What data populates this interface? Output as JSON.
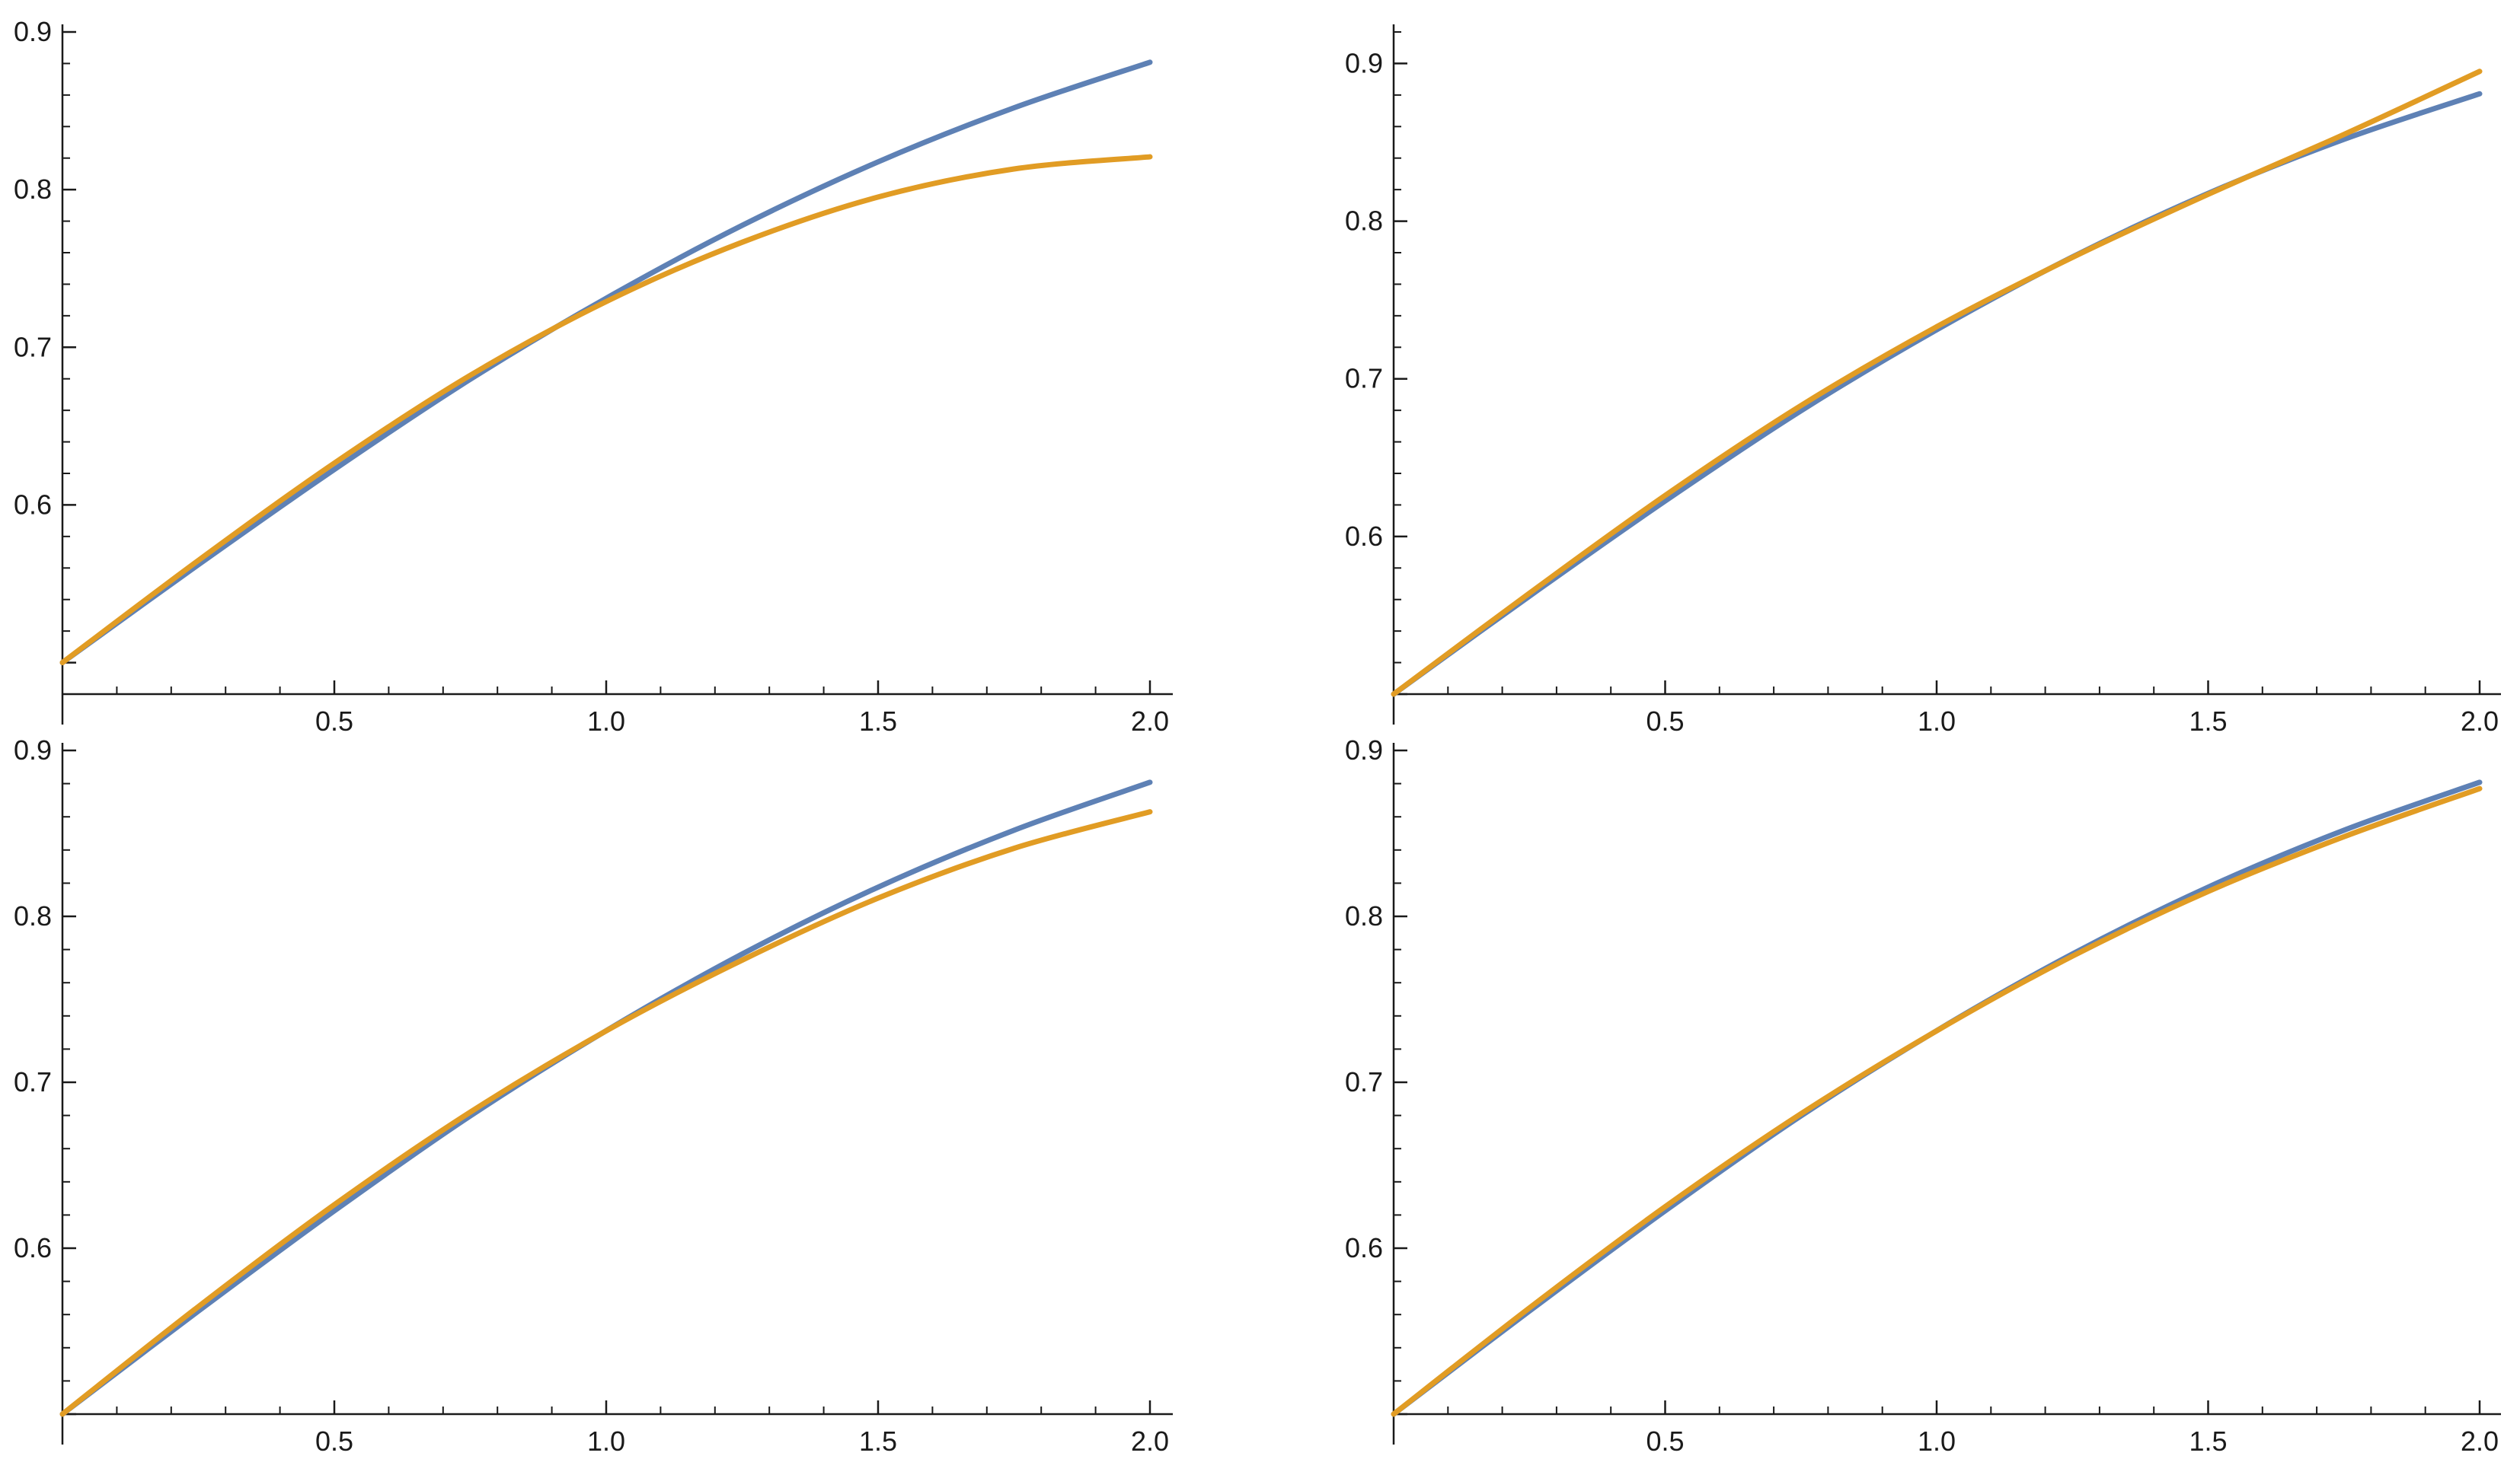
{
  "colors": {
    "series_1": "#5e81b5",
    "series_2": "#e19c24",
    "axis": "#1a1a1a"
  },
  "chart_data": [
    {
      "type": "line",
      "position": "top-left",
      "xlim": [
        0,
        2.0
      ],
      "ylim": [
        0.48,
        0.9
      ],
      "x_ticks": [
        "0.5",
        "1.0",
        "1.5",
        "2.0"
      ],
      "y_ticks": [
        "0.6",
        "0.7",
        "0.8",
        "0.9"
      ],
      "x": [
        0,
        0.25,
        0.5,
        0.75,
        1.0,
        1.25,
        1.5,
        1.75,
        2.0
      ],
      "series": [
        {
          "values": [
            0.5,
            0.5621,
            0.6225,
            0.6797,
            0.7311,
            0.7773,
            0.8176,
            0.8519,
            0.8808
          ]
        },
        {
          "values": [
            0.5,
            0.5648,
            0.6265,
            0.6822,
            0.729,
            0.7666,
            0.7953,
            0.8131,
            0.8208
          ]
        }
      ]
    },
    {
      "type": "line",
      "position": "top-right",
      "xlim": [
        0,
        2.0
      ],
      "ylim": [
        0.5,
        0.92
      ],
      "x_ticks": [
        "0.5",
        "1.0",
        "1.5",
        "2.0"
      ],
      "y_ticks": [
        "0.6",
        "0.7",
        "0.8",
        "0.9"
      ],
      "x": [
        0,
        0.25,
        0.5,
        0.75,
        1.0,
        1.25,
        1.5,
        1.75,
        2.0
      ],
      "series": [
        {
          "values": [
            0.5,
            0.5621,
            0.6225,
            0.6797,
            0.7311,
            0.7773,
            0.8176,
            0.8519,
            0.8808
          ]
        },
        {
          "values": [
            0.5,
            0.564,
            0.626,
            0.683,
            0.733,
            0.777,
            0.817,
            0.855,
            0.895
          ]
        }
      ]
    },
    {
      "type": "line",
      "position": "bottom-left",
      "xlim": [
        0,
        2.0
      ],
      "ylim": [
        0.5,
        0.9
      ],
      "x_ticks": [
        "0.5",
        "1.0",
        "1.5",
        "2.0"
      ],
      "y_ticks": [
        "0.6",
        "0.7",
        "0.8",
        "0.9"
      ],
      "x": [
        0,
        0.25,
        0.5,
        0.75,
        1.0,
        1.25,
        1.5,
        1.75,
        2.0
      ],
      "series": [
        {
          "values": [
            0.5,
            0.5621,
            0.6225,
            0.6797,
            0.7311,
            0.7773,
            0.8176,
            0.8519,
            0.8808
          ]
        },
        {
          "values": [
            0.5,
            0.5648,
            0.6262,
            0.682,
            0.731,
            0.7736,
            0.811,
            0.841,
            0.863
          ]
        }
      ]
    },
    {
      "type": "line",
      "position": "bottom-right",
      "xlim": [
        0,
        2.0
      ],
      "ylim": [
        0.5,
        0.9
      ],
      "x_ticks": [
        "0.5",
        "1.0",
        "1.5",
        "2.0"
      ],
      "y_ticks": [
        "0.6",
        "0.7",
        "0.8",
        "0.9"
      ],
      "x": [
        0,
        0.25,
        0.5,
        0.75,
        1.0,
        1.25,
        1.5,
        1.75,
        2.0
      ],
      "series": [
        {
          "values": [
            0.5,
            0.5621,
            0.6225,
            0.6797,
            0.7311,
            0.7773,
            0.8176,
            0.8519,
            0.8808
          ]
        },
        {
          "values": [
            0.5,
            0.564,
            0.625,
            0.681,
            0.731,
            0.776,
            0.815,
            0.848,
            0.877
          ]
        }
      ]
    }
  ]
}
